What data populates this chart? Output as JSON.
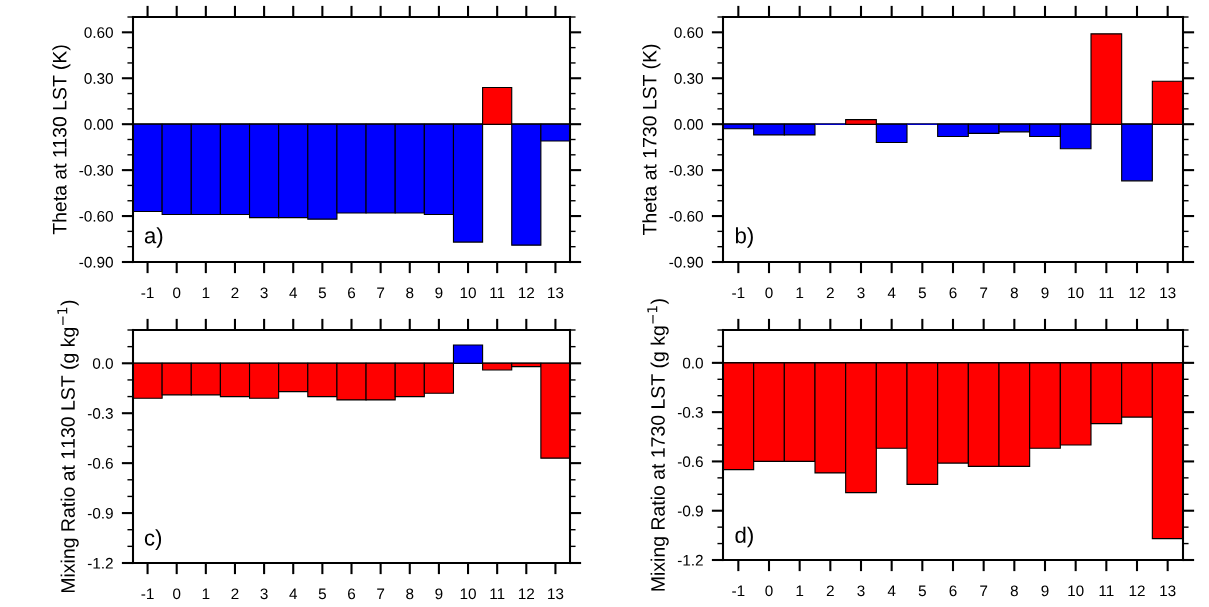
{
  "chart_data": [
    {
      "type": "bar",
      "ylabel": "Theta at 1130 LST (K)",
      "annotations": [
        "a)"
      ],
      "categories": [
        "-1",
        "0",
        "1",
        "2",
        "3",
        "4",
        "5",
        "6",
        "7",
        "8",
        "9",
        "10",
        "11",
        "12",
        "13"
      ],
      "values": [
        -0.57,
        -0.59,
        -0.59,
        -0.59,
        -0.61,
        -0.61,
        -0.62,
        -0.58,
        -0.58,
        -0.58,
        -0.59,
        -0.77,
        0.24,
        -0.79,
        -0.11
      ],
      "colors": [
        "#0000ff",
        "#0000ff",
        "#0000ff",
        "#0000ff",
        "#0000ff",
        "#0000ff",
        "#0000ff",
        "#0000ff",
        "#0000ff",
        "#0000ff",
        "#0000ff",
        "#0000ff",
        "#ff0000",
        "#0000ff",
        "#0000ff"
      ],
      "ylim": [
        -0.9,
        0.7
      ],
      "yticks": [
        {
          "value": -0.9,
          "label": "-0.90"
        },
        {
          "value": -0.6,
          "label": "-0.60"
        },
        {
          "value": -0.3,
          "label": "-0.30"
        },
        {
          "value": 0,
          "label": "0.00"
        },
        {
          "value": 0.3,
          "label": "0.30"
        },
        {
          "value": 0.6,
          "label": "0.60"
        }
      ],
      "ref_lines": [
        {
          "axis": "y",
          "value": 0
        }
      ],
      "legend": false
    },
    {
      "type": "bar",
      "ylabel": "Theta at 1730 LST (K)",
      "annotations": [
        "b)"
      ],
      "categories": [
        "-1",
        "0",
        "1",
        "2",
        "3",
        "4",
        "5",
        "6",
        "7",
        "8",
        "9",
        "10",
        "11",
        "12",
        "13"
      ],
      "values": [
        -0.03,
        -0.07,
        -0.07,
        0.0,
        0.03,
        -0.12,
        0.0,
        -0.08,
        -0.06,
        -0.05,
        -0.08,
        -0.16,
        0.59,
        -0.37,
        0.28
      ],
      "colors": [
        "#0000ff",
        "#0000ff",
        "#0000ff",
        "#0000ff",
        "#ff0000",
        "#0000ff",
        "#0000ff",
        "#0000ff",
        "#0000ff",
        "#0000ff",
        "#0000ff",
        "#0000ff",
        "#ff0000",
        "#0000ff",
        "#ff0000"
      ],
      "ylim": [
        -0.9,
        0.7
      ],
      "yticks": [
        {
          "value": -0.9,
          "label": "-0.90"
        },
        {
          "value": -0.6,
          "label": "-0.60"
        },
        {
          "value": -0.3,
          "label": "-0.30"
        },
        {
          "value": 0,
          "label": "0.00"
        },
        {
          "value": 0.3,
          "label": "0.30"
        },
        {
          "value": 0.6,
          "label": "0.60"
        }
      ],
      "ref_lines": [
        {
          "axis": "y",
          "value": 0
        }
      ],
      "legend": false
    },
    {
      "type": "bar",
      "ylabel": "Mixing Ratio at 1130 LST (g kg$^{−1}$)",
      "annotations": [
        "c)"
      ],
      "categories": [
        "-1",
        "0",
        "1",
        "2",
        "3",
        "4",
        "5",
        "6",
        "7",
        "8",
        "9",
        "10",
        "11",
        "12",
        "13"
      ],
      "values": [
        -0.21,
        -0.19,
        -0.19,
        -0.2,
        -0.21,
        -0.17,
        -0.2,
        -0.22,
        -0.22,
        -0.2,
        -0.18,
        0.11,
        -0.04,
        -0.02,
        -0.57
      ],
      "colors": [
        "#ff0000",
        "#ff0000",
        "#ff0000",
        "#ff0000",
        "#ff0000",
        "#ff0000",
        "#ff0000",
        "#ff0000",
        "#ff0000",
        "#ff0000",
        "#ff0000",
        "#0000ff",
        "#ff0000",
        "#ff0000",
        "#ff0000"
      ],
      "ylim": [
        -1.2,
        0.2
      ],
      "yticks": [
        {
          "value": -1.2,
          "label": "-1.2"
        },
        {
          "value": -0.9,
          "label": "-0.9"
        },
        {
          "value": -0.6,
          "label": "-0.6"
        },
        {
          "value": -0.3,
          "label": "-0.3"
        },
        {
          "value": 0,
          "label": "0.0"
        }
      ],
      "ref_lines": [
        {
          "axis": "y",
          "value": 0
        }
      ],
      "legend": false
    },
    {
      "type": "bar",
      "ylabel": "Mixing Ratio at 1730 LST (g kg$^{−1}$)",
      "annotations": [
        "d)"
      ],
      "categories": [
        "-1",
        "0",
        "1",
        "2",
        "3",
        "4",
        "5",
        "6",
        "7",
        "8",
        "9",
        "10",
        "11",
        "12",
        "13"
      ],
      "values": [
        -0.65,
        -0.6,
        -0.6,
        -0.67,
        -0.79,
        -0.52,
        -0.74,
        -0.61,
        -0.63,
        -0.63,
        -0.52,
        -0.5,
        -0.37,
        -0.33,
        -1.07
      ],
      "colors": [
        "#ff0000",
        "#ff0000",
        "#ff0000",
        "#ff0000",
        "#ff0000",
        "#ff0000",
        "#ff0000",
        "#ff0000",
        "#ff0000",
        "#ff0000",
        "#ff0000",
        "#ff0000",
        "#ff0000",
        "#ff0000",
        "#ff0000"
      ],
      "ylim": [
        -1.2,
        0.2
      ],
      "yticks": [
        {
          "value": -1.2,
          "label": "-1.2"
        },
        {
          "value": -0.9,
          "label": "-0.9"
        },
        {
          "value": -0.6,
          "label": "-0.6"
        },
        {
          "value": -0.3,
          "label": "-0.3"
        },
        {
          "value": 0,
          "label": "0.0"
        }
      ],
      "ref_lines": [
        {
          "axis": "y",
          "value": 0
        }
      ],
      "legend": false
    }
  ]
}
